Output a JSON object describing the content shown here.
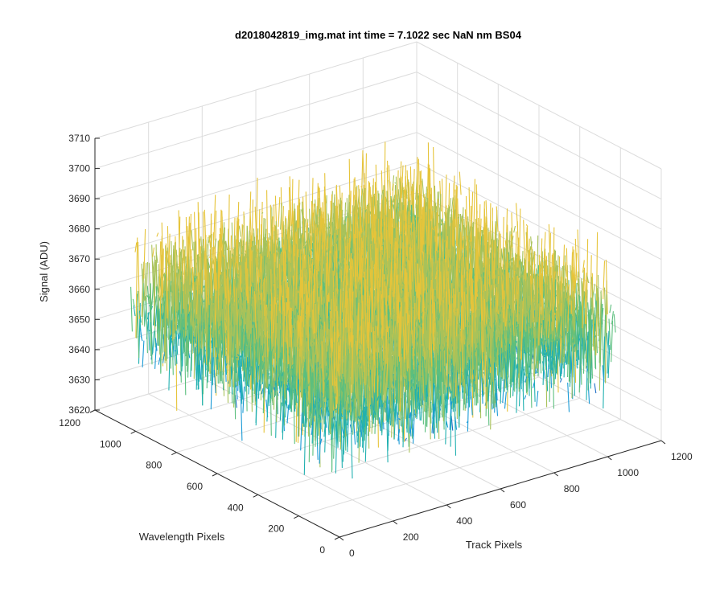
{
  "chart_data": {
    "type": "surface3d",
    "title": "d2018042819_img.mat int time = 7.1022 sec  NaN nm BS04",
    "xlabel": "Track Pixels",
    "ylabel": "Wavelength Pixels",
    "zlabel": "Signal (ADU)",
    "xlim": [
      0,
      1200
    ],
    "ylim": [
      0,
      1200
    ],
    "zlim": [
      3620,
      3710
    ],
    "xticks": [
      "0",
      "200",
      "400",
      "600",
      "800",
      "1000",
      "1200"
    ],
    "yticks": [
      "0",
      "200",
      "400",
      "600",
      "800",
      "1000",
      "1200"
    ],
    "zticks": [
      "3620",
      "3630",
      "3640",
      "3650",
      "3660",
      "3670",
      "3680",
      "3690",
      "3700",
      "3710"
    ],
    "grid": true,
    "data_extent": {
      "x": [
        0,
        1024
      ],
      "y": [
        0,
        1024
      ]
    },
    "signal_mean": 3663,
    "signal_spread": 12,
    "colormap": [
      "#1f6fc6",
      "#1a9ad6",
      "#20b0b0",
      "#5cbf7e",
      "#a9c25a",
      "#e6c43a"
    ]
  }
}
